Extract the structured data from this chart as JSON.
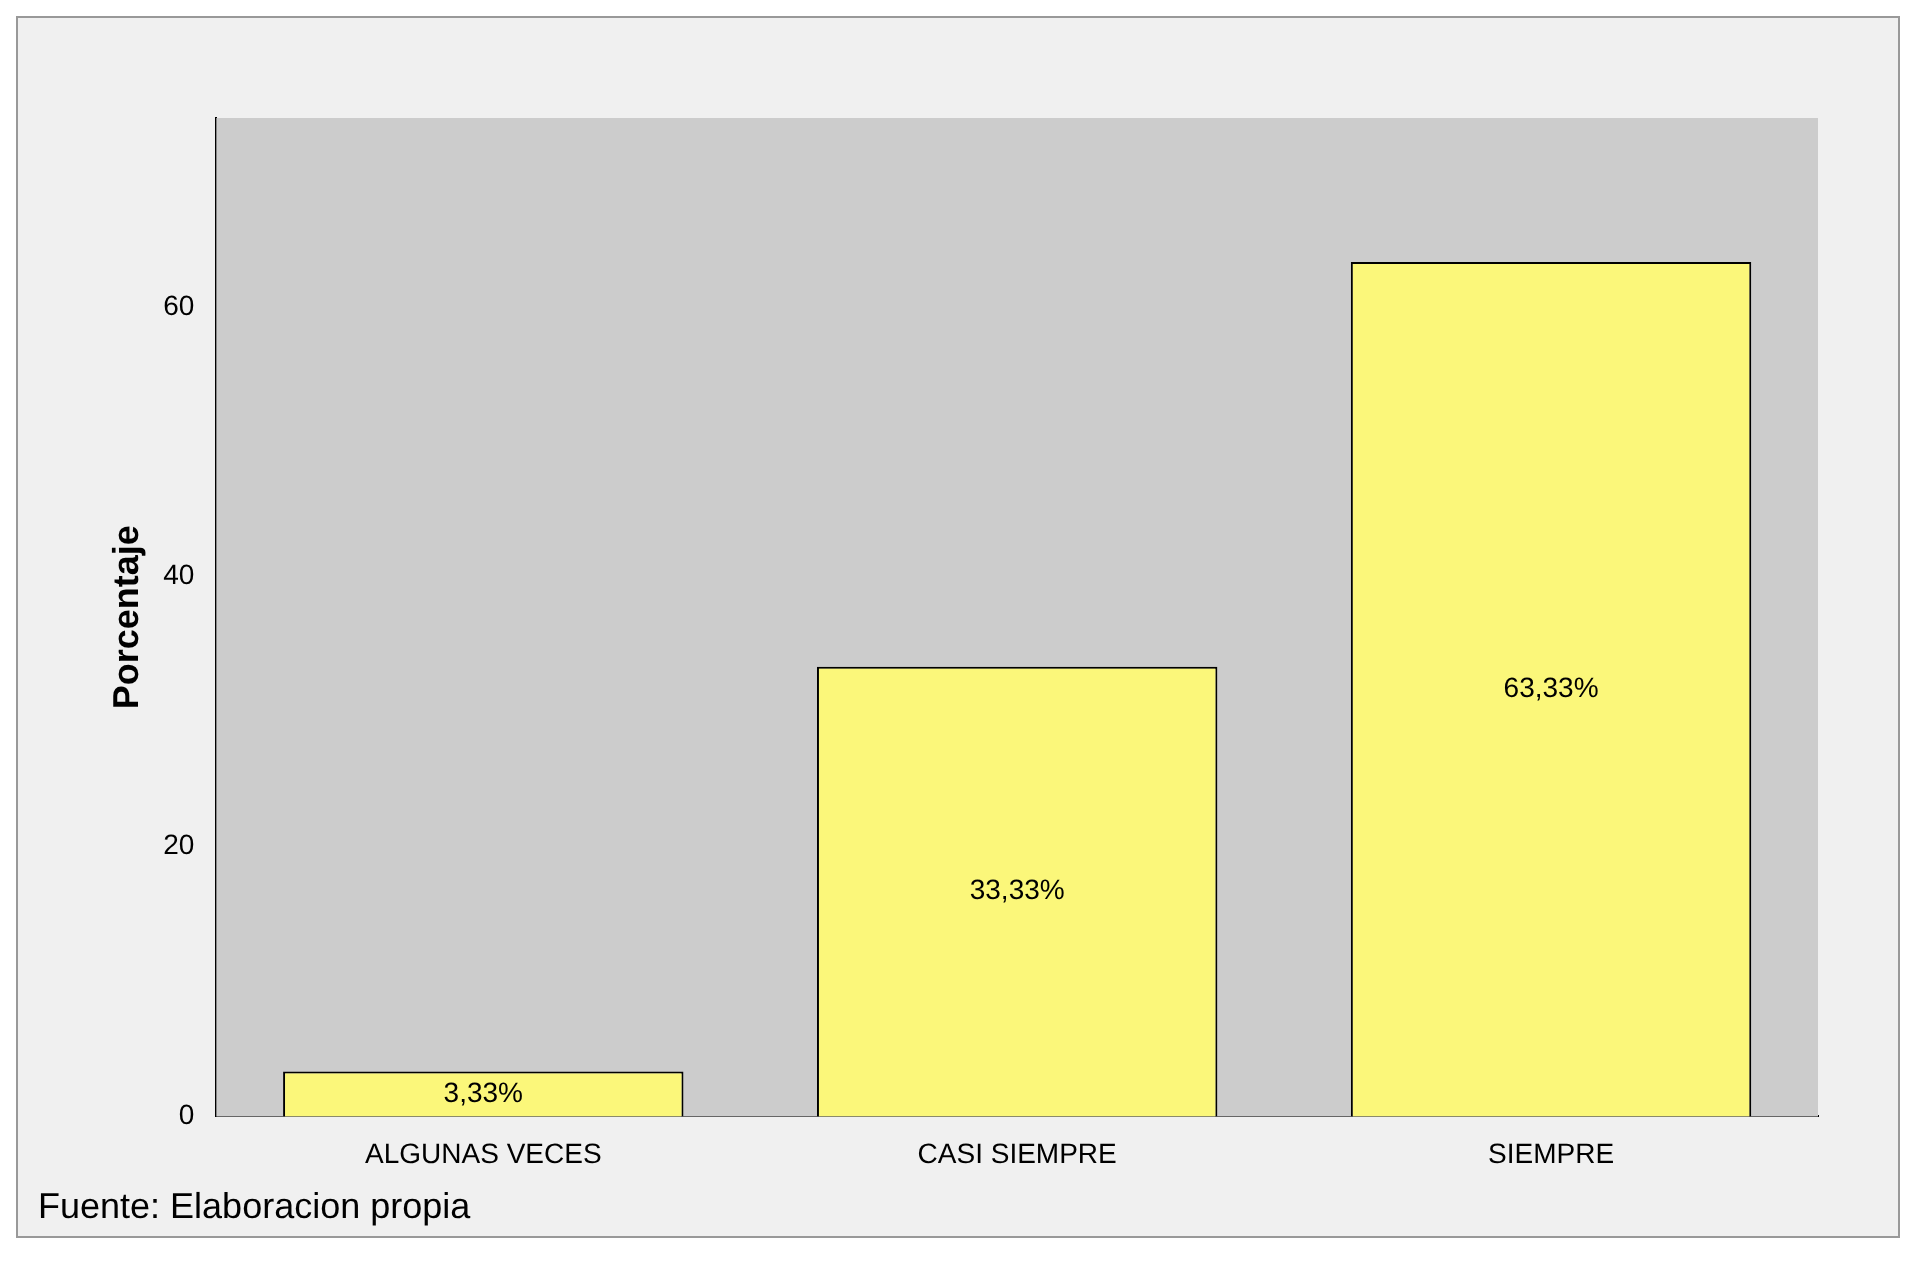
{
  "chart_data": {
    "type": "bar",
    "ylabel": "Porcentaje",
    "categories": [
      "ALGUNAS VECES",
      "CASI SIEMPRE",
      "SIEMPRE"
    ],
    "values": [
      3.33,
      33.33,
      63.33
    ],
    "color": "#fbf77a",
    "value_labels": [
      "3,33%",
      "33,33%",
      "63,33%"
    ],
    "ylim": [
      0,
      74
    ],
    "yticks": [
      0,
      20,
      40,
      60
    ],
    "grid": false,
    "annotations": [
      "Fuente: Elaboracion propia"
    ]
  }
}
